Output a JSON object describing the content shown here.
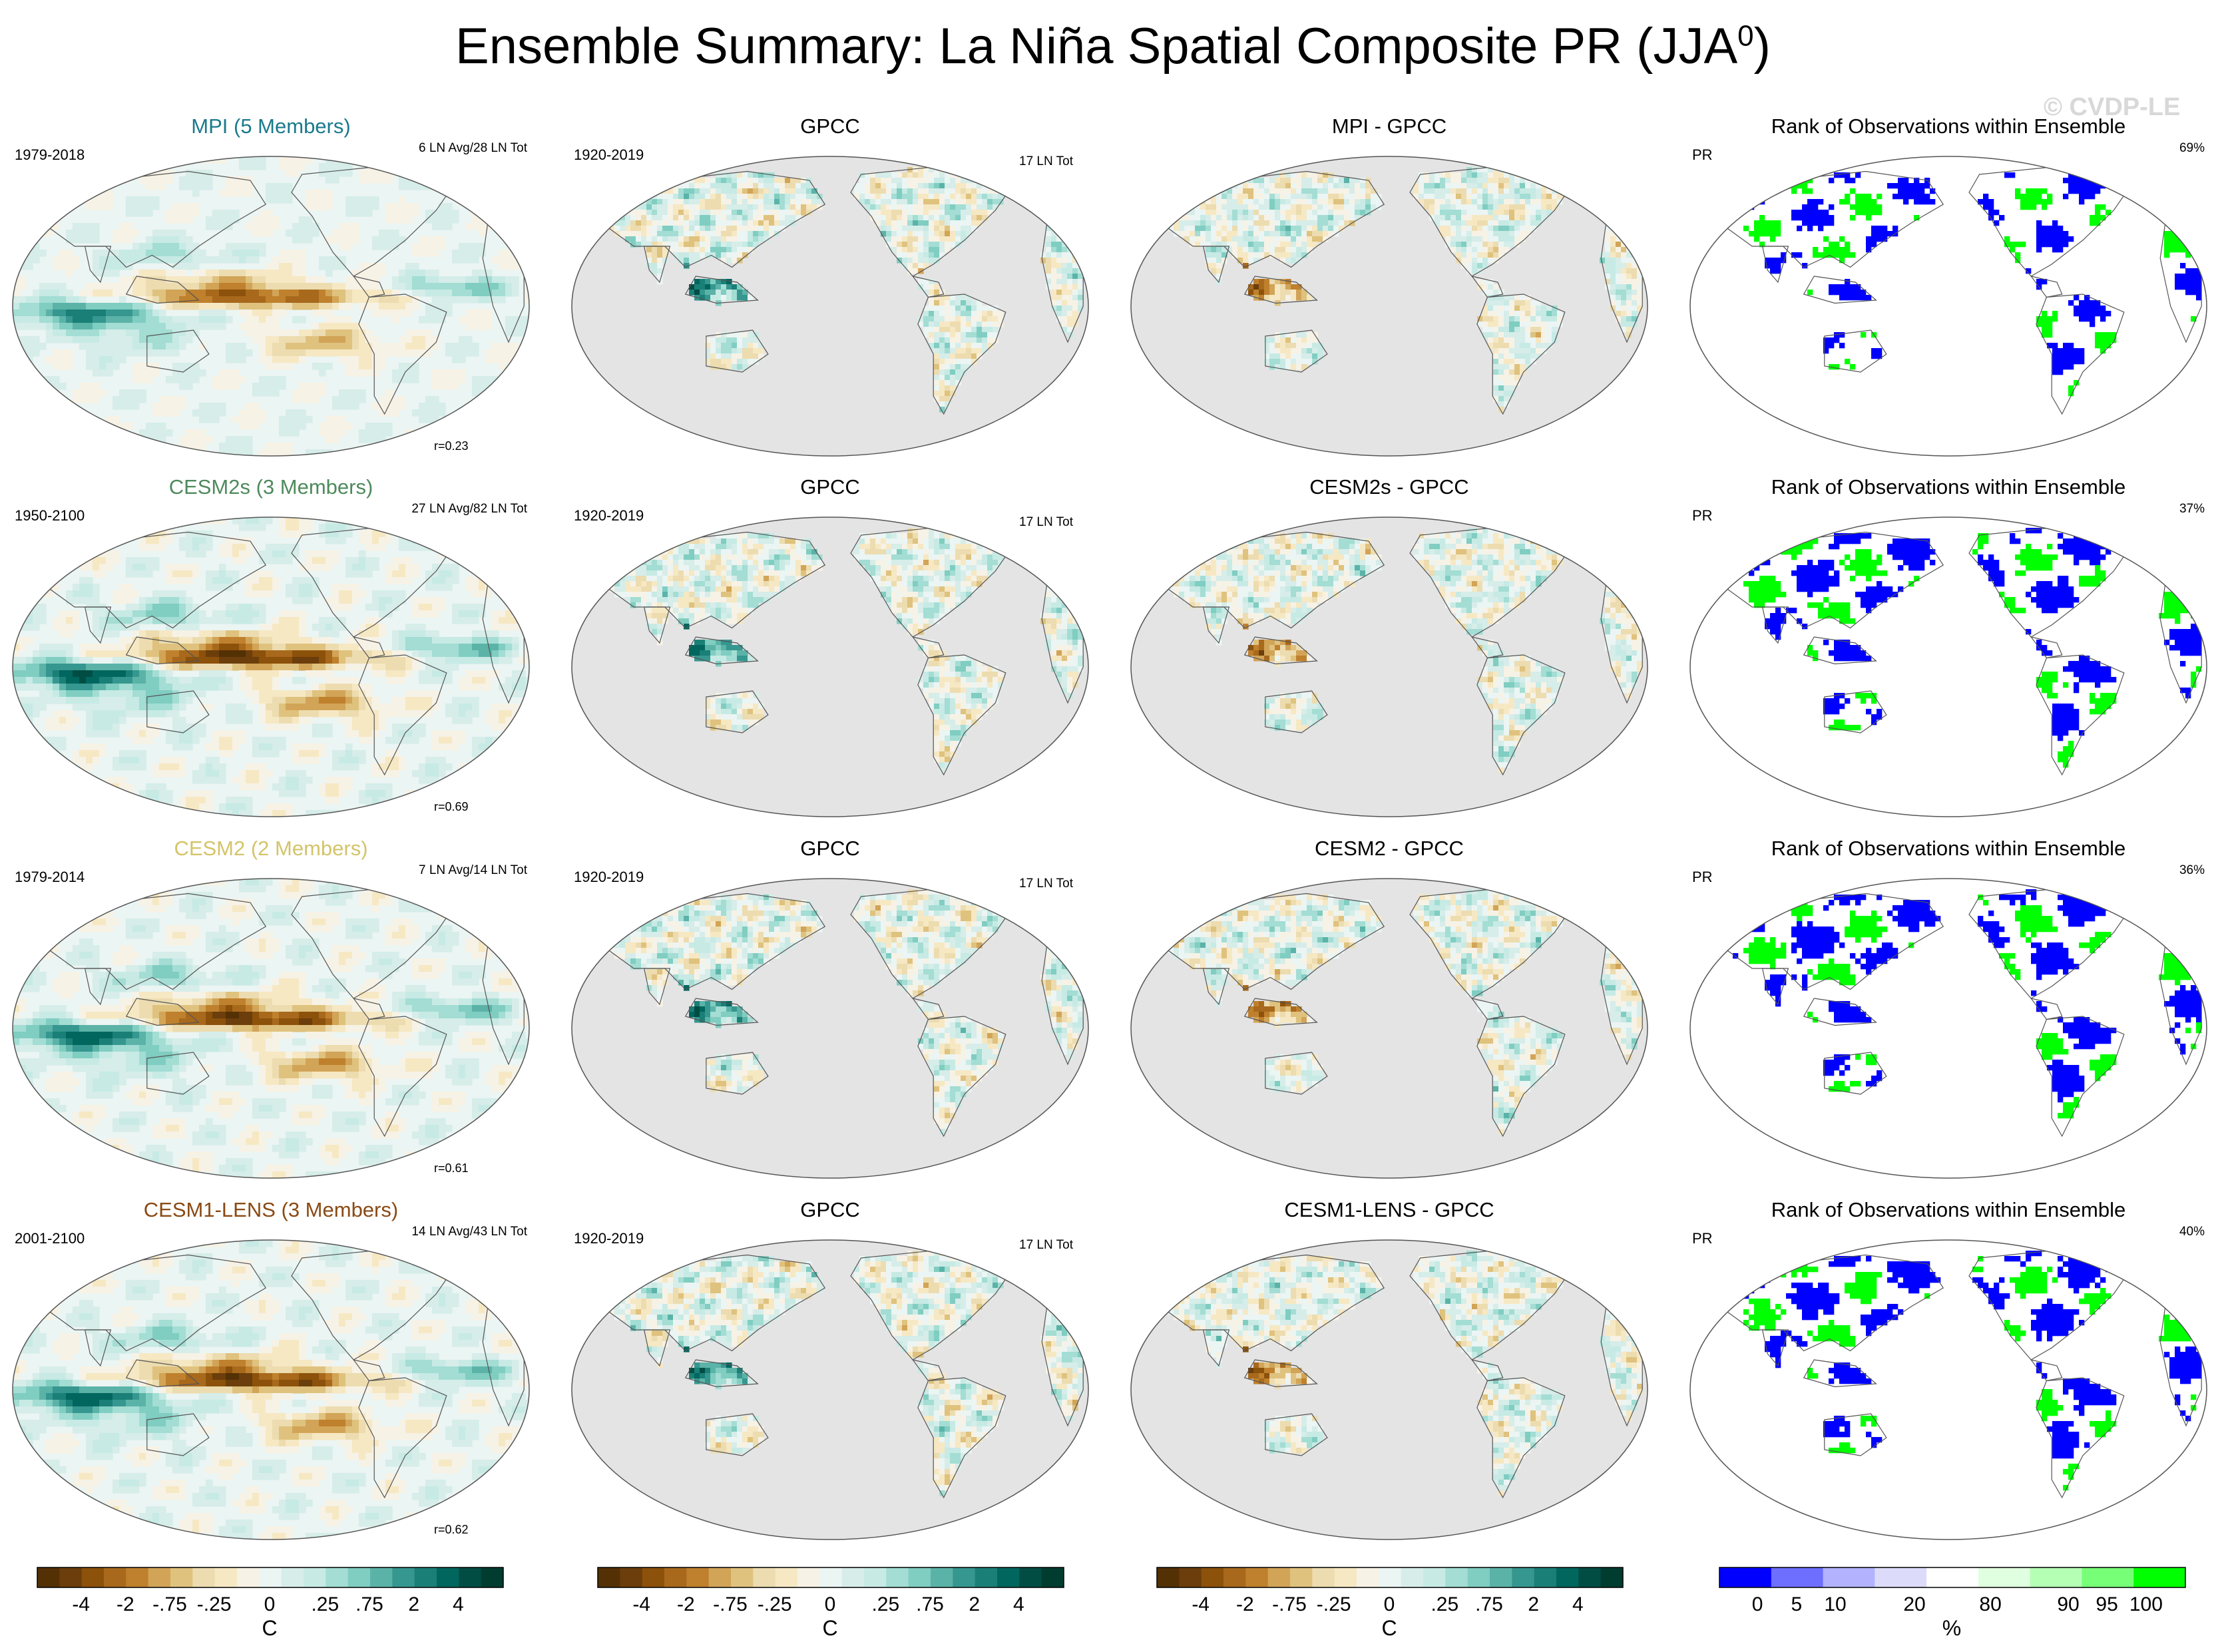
{
  "figure": {
    "title_main": "Ensemble Summary: La Niña Spatial Composite PR (JJA",
    "title_sup": "0",
    "title_close": ")",
    "copyright": "© CVDP-LE"
  },
  "colors": {
    "ocean_blank": "#ffffff",
    "land_mask": "#e4e4e4",
    "coast": "#555555"
  },
  "rows": [
    {
      "model": {
        "title": "MPI (5 Members)",
        "title_color": "#1a7a8c",
        "period": "1979-2018",
        "count": "6 LN Avg/28 LN Tot",
        "r": "r=0.23",
        "strength": 0.8
      },
      "obs": {
        "title": "GPCC",
        "period": "1920-2019",
        "count": "17 LN Tot"
      },
      "diff": {
        "title": "MPI - GPCC"
      },
      "rank": {
        "title": "Rank of Observations within Ensemble",
        "var": "PR",
        "pct": "69%",
        "density": 0.35
      }
    },
    {
      "model": {
        "title": "CESM2s (3 Members)",
        "title_color": "#4e8a5c",
        "period": "1950-2100",
        "count": "27 LN Avg/82 LN Tot",
        "r": "r=0.69",
        "strength": 1.0
      },
      "obs": {
        "title": "GPCC",
        "period": "1920-2019",
        "count": "17 LN Tot"
      },
      "diff": {
        "title": "CESM2s - GPCC"
      },
      "rank": {
        "title": "Rank of Observations within Ensemble",
        "var": "PR",
        "pct": "37%",
        "density": 0.75
      }
    },
    {
      "model": {
        "title": "CESM2 (2 Members)",
        "title_color": "#d4c46a",
        "period": "1979-2014",
        "count": "7 LN Avg/14 LN Tot",
        "r": "r=0.61",
        "strength": 0.95
      },
      "obs": {
        "title": "GPCC",
        "period": "1920-2019",
        "count": "17 LN Tot"
      },
      "diff": {
        "title": "CESM2 - GPCC"
      },
      "rank": {
        "title": "Rank of Observations within Ensemble",
        "var": "PR",
        "pct": "36%",
        "density": 0.8
      }
    },
    {
      "model": {
        "title": "CESM1-LENS (3 Members)",
        "title_color": "#8a4a14",
        "period": "2001-2100",
        "count": "14 LN Avg/43 LN Tot",
        "r": "r=0.62",
        "strength": 0.95
      },
      "obs": {
        "title": "GPCC",
        "period": "1920-2019",
        "count": "17 LN Tot"
      },
      "diff": {
        "title": "CESM1-LENS - GPCC"
      },
      "rank": {
        "title": "Rank of Observations within Ensemble",
        "var": "PR",
        "pct": "40%",
        "density": 0.7
      }
    }
  ],
  "colorbars": {
    "anomaly": {
      "colors": [
        "#543005",
        "#6b3e0b",
        "#8c510a",
        "#a8691c",
        "#bf812d",
        "#d2a457",
        "#dfc27d",
        "#ecdcb0",
        "#f6e8c3",
        "#f7f2e6",
        "#ebf5f3",
        "#d6ede9",
        "#c7eae5",
        "#a3ddd4",
        "#80cdc1",
        "#5bb3a8",
        "#35978f",
        "#1a7f76",
        "#01665e",
        "#014d44",
        "#003c30"
      ],
      "tick_labels": [
        "-4",
        "-2",
        "-.75",
        "-.25",
        "0",
        ".25",
        ".75",
        "2",
        "4"
      ],
      "tick_bins": [
        2,
        4,
        6,
        8,
        10.5,
        13,
        15,
        17,
        19
      ],
      "units": "C"
    },
    "rank": {
      "colors": [
        "#0000ff",
        "#6e6eff",
        "#b2b2ff",
        "#dcdcfa",
        "#ffffff",
        "#e0ffe0",
        "#b4ffb4",
        "#78ff78",
        "#00ff00"
      ],
      "tick_labels": [
        "0",
        "5",
        "10",
        "20",
        "80",
        "90",
        "95",
        "100"
      ],
      "tick_pos": [
        0.083,
        0.167,
        0.25,
        0.42,
        0.583,
        0.75,
        0.833,
        0.917
      ],
      "units": "%"
    }
  }
}
